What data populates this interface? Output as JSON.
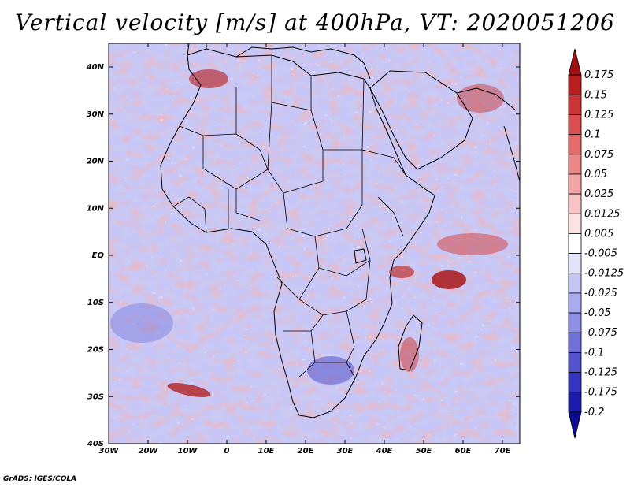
{
  "title": "Vertical velocity [m/s] at 400hPa, VT: 2020051206",
  "credit": "GrADS: IGES/COLA",
  "lat_ticks": [
    "40N",
    "30N",
    "20N",
    "10N",
    "EQ",
    "10S",
    "20S",
    "30S",
    "40S"
  ],
  "lon_ticks": [
    "30W",
    "20W",
    "10W",
    "0",
    "10E",
    "20E",
    "30E",
    "40E",
    "50E",
    "60E",
    "70E"
  ],
  "colorbar": {
    "labels": [
      "0.175",
      "0.15",
      "0.125",
      "0.1",
      "0.075",
      "0.05",
      "0.025",
      "0.0125",
      "0.005",
      "-0.005",
      "-0.0125",
      "-0.025",
      "-0.05",
      "-0.075",
      "-0.1",
      "-0.125",
      "-0.175",
      "-0.2"
    ],
    "colors": [
      "#a01010",
      "#b82020",
      "#cc3535",
      "#da5050",
      "#e36b6b",
      "#ec8787",
      "#f3a5a5",
      "#f8c4c4",
      "#fce2e2",
      "#ffffff",
      "#e2e2fb",
      "#c6c6f5",
      "#aaaaee",
      "#8e8ee6",
      "#7070db",
      "#5252cf",
      "#3434bf",
      "#1c1caa",
      "#0a0a90"
    ]
  }
}
